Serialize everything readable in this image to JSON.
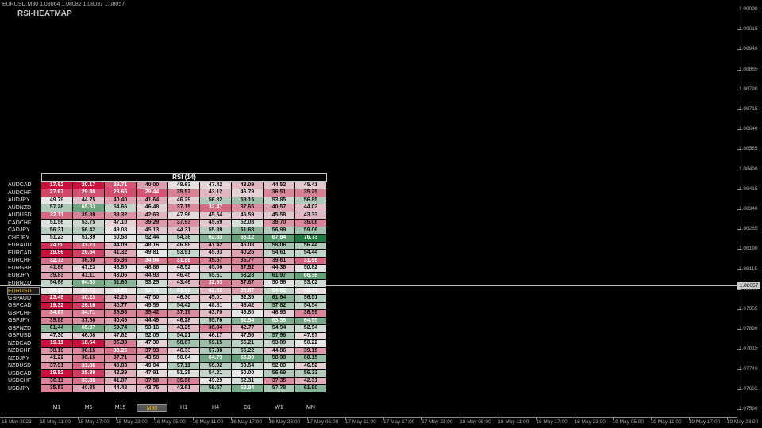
{
  "chart": {
    "title": "EURUSD,M30  1.08064 1.08082 1.08037 1.08057",
    "indicator_name": "RSI-HEATMAP",
    "current_price": "1.08057"
  },
  "price_axis": [
    "1.09090",
    "1.09015",
    "1.08940",
    "1.08865",
    "1.08790",
    "1.08715",
    "1.08640",
    "1.08565",
    "1.08490",
    "1.08415",
    "1.08340",
    "1.08265",
    "1.08190",
    "1.08115",
    "1.08040",
    "1.07965",
    "1.07890",
    "1.07815",
    "1.07740",
    "1.07665",
    "1.07590"
  ],
  "time_axis": [
    "15 May 2023",
    "15 May 11:00",
    "15 May 17:00",
    "15 May 23:00",
    "16 May 05:00",
    "16 May 11:00",
    "16 May 17:00",
    "16 May 23:00",
    "17 May 05:00",
    "17 May 11:00",
    "17 May 17:00",
    "17 May 23:00",
    "18 May 05:00",
    "18 May 11:00",
    "18 May 17:00",
    "18 May 23:00",
    "19 May 05:00",
    "19 May 11:00",
    "19 May 17:00",
    "19 May 23:00"
  ],
  "heatmap": {
    "title": "RSI (14)",
    "timeframes": [
      "M1",
      "M5",
      "M15",
      "M30",
      "H1",
      "H4",
      "D1",
      "W1",
      "MN"
    ],
    "selected_timeframe": "M30",
    "selected_symbol": "EURUSD",
    "rows": [
      {
        "symbol": "AUDCAD",
        "values": [
          "17.62",
          "20.17",
          "29.71",
          "40.00",
          "48.63",
          "47.42",
          "43.09",
          "44.52",
          "45.41"
        ]
      },
      {
        "symbol": "AUDCHF",
        "values": [
          "27.67",
          "29.30",
          "28.65",
          "29.44",
          "35.57",
          "43.12",
          "46.79",
          "36.51",
          "35.25"
        ]
      },
      {
        "symbol": "AUDJPY",
        "values": [
          "49.79",
          "44.75",
          "40.40",
          "41.64",
          "46.29",
          "56.82",
          "59.15",
          "53.85",
          "56.85"
        ]
      },
      {
        "symbol": "AUDNZD",
        "values": [
          "57.28",
          "65.53",
          "54.66",
          "46.48",
          "37.15",
          "32.47",
          "37.65",
          "40.57",
          "44.02"
        ]
      },
      {
        "symbol": "AUDUSD",
        "values": [
          "32.11",
          "35.89",
          "38.32",
          "42.63",
          "47.96",
          "45.54",
          "45.59",
          "45.58",
          "43.33"
        ]
      },
      {
        "symbol": "CADCHF",
        "values": [
          "51.56",
          "53.75",
          "47.10",
          "39.29",
          "37.93",
          "45.69",
          "52.08",
          "38.70",
          "36.08"
        ]
      },
      {
        "symbol": "CADJPY",
        "values": [
          "56.31",
          "56.42",
          "49.08",
          "45.13",
          "44.31",
          "55.89",
          "61.68",
          "56.99",
          "59.06"
        ]
      },
      {
        "symbol": "CHFJPY",
        "values": [
          "51.23",
          "51.39",
          "50.58",
          "52.44",
          "54.38",
          "62.53",
          "66.12",
          "67.84",
          "76.73"
        ]
      },
      {
        "symbol": "EURAUD",
        "values": [
          "24.50",
          "31.73",
          "44.09",
          "48.16",
          "46.88",
          "41.42",
          "45.08",
          "58.06",
          "56.44"
        ]
      },
      {
        "symbol": "EURCAD",
        "values": [
          "19.86",
          "26.54",
          "41.32",
          "49.81",
          "53.91",
          "45.93",
          "40.26",
          "54.61",
          "54.44"
        ]
      },
      {
        "symbol": "EURCHF",
        "values": [
          "32.73",
          "36.50",
          "35.36",
          "34.94",
          "31.89",
          "35.57",
          "35.77",
          "39.61",
          "31.96"
        ]
      },
      {
        "symbol": "EURGBP",
        "values": [
          "41.86",
          "47.23",
          "48.85",
          "48.86",
          "48.52",
          "45.06",
          "37.92",
          "44.36",
          "50.82"
        ]
      },
      {
        "symbol": "EURJPY",
        "values": [
          "39.83",
          "41.11",
          "43.06",
          "44.93",
          "46.45",
          "55.61",
          "58.28",
          "61.97",
          "66.38"
        ]
      },
      {
        "symbol": "EURNZD",
        "values": [
          "54.66",
          "64.53",
          "61.60",
          "53.25",
          "43.49",
          "32.93",
          "37.67",
          "50.56",
          "53.02"
        ]
      },
      {
        "symbol": "EURUSD",
        "values": [
          "48.97",
          "47.72",
          "48.69",
          "52.72",
          "53.82",
          "42.82",
          "39.87",
          "54.62",
          "48.31"
        ]
      },
      {
        "symbol": "GBPAUD",
        "values": [
          "23.49",
          "30.23",
          "42.29",
          "47.50",
          "46.30",
          "45.01",
          "52.39",
          "61.94",
          "56.51"
        ]
      },
      {
        "symbol": "GBPCAD",
        "values": [
          "19.32",
          "26.16",
          "40.77",
          "49.59",
          "54.42",
          "48.81",
          "46.42",
          "57.82",
          "54.54"
        ]
      },
      {
        "symbol": "GBPCHF",
        "values": [
          "34.87",
          "34.71",
          "35.96",
          "35.42",
          "37.19",
          "43.70",
          "49.80",
          "46.93",
          "36.59"
        ]
      },
      {
        "symbol": "GBPJPY",
        "values": [
          "35.88",
          "37.56",
          "40.49",
          "44.49",
          "46.28",
          "55.76",
          "62.54",
          "63.36",
          "64.55"
        ]
      },
      {
        "symbol": "GBPNZD",
        "values": [
          "61.44",
          "65.07",
          "59.74",
          "53.16",
          "43.25",
          "36.04",
          "42.77",
          "54.94",
          "52.94"
        ]
      },
      {
        "symbol": "GBPUSD",
        "values": [
          "47.30",
          "46.08",
          "47.62",
          "52.05",
          "54.21",
          "46.17",
          "47.56",
          "57.96",
          "47.97"
        ]
      },
      {
        "symbol": "NZDCAD",
        "values": [
          "19.11",
          "18.64",
          "35.33",
          "47.30",
          "58.87",
          "59.15",
          "55.21",
          "53.89",
          "50.22"
        ]
      },
      {
        "symbol": "NZDCHF",
        "values": [
          "38.10",
          "36.16",
          "33.25",
          "37.93",
          "46.33",
          "57.38",
          "56.22",
          "44.86",
          "39.15"
        ]
      },
      {
        "symbol": "NZDJPY",
        "values": [
          "41.22",
          "36.16",
          "37.71",
          "43.58",
          "50.64",
          "64.73",
          "65.90",
          "58.98",
          "60.15"
        ]
      },
      {
        "symbol": "NZDUSD",
        "values": [
          "37.91",
          "31.86",
          "40.83",
          "49.04",
          "57.11",
          "55.92",
          "53.54",
          "52.09",
          "46.52"
        ]
      },
      {
        "symbol": "USDCAD",
        "values": [
          "18.52",
          "25.89",
          "42.39",
          "47.91",
          "51.25",
          "54.21",
          "50.00",
          "56.69",
          "56.33"
        ]
      },
      {
        "symbol": "USDCHF",
        "values": [
          "36.11",
          "33.88",
          "41.87",
          "37.50",
          "35.66",
          "49.29",
          "52.31",
          "37.35",
          "42.31"
        ]
      },
      {
        "symbol": "USDJPY",
        "values": [
          "35.53",
          "40.85",
          "44.48",
          "43.75",
          "43.61",
          "58.57",
          "63.84",
          "57.78",
          "61.80"
        ]
      }
    ]
  },
  "colors": {
    "background": "#000000",
    "oversold": "#c8103c",
    "neutral": "#e8e8e8",
    "overbought": "#1e7a3e",
    "selected_symbol_text": "#f2b61c"
  }
}
